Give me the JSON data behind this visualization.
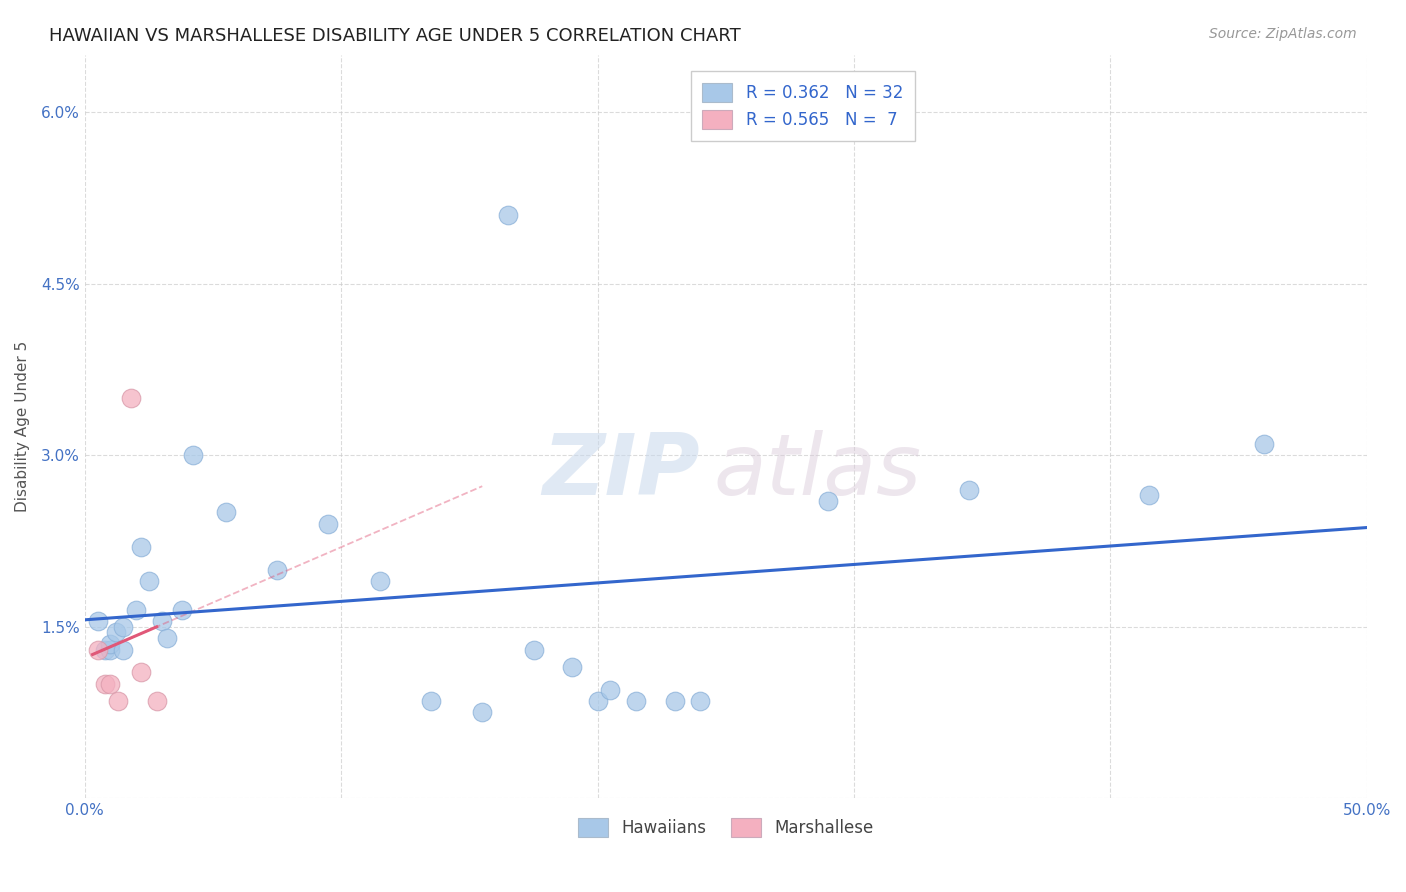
{
  "title": "HAWAIIAN VS MARSHALLESE DISABILITY AGE UNDER 5 CORRELATION CHART",
  "source": "Source: ZipAtlas.com",
  "ylabel": "Disability Age Under 5",
  "xlim": [
    0.0,
    0.5
  ],
  "ylim": [
    0.0,
    0.065
  ],
  "xticks": [
    0.0,
    0.1,
    0.2,
    0.3,
    0.4,
    0.5
  ],
  "xticklabels": [
    "0.0%",
    "",
    "",
    "",
    "",
    "50.0%"
  ],
  "yticks": [
    0.0,
    0.015,
    0.03,
    0.045,
    0.06
  ],
  "yticklabels": [
    "",
    "1.5%",
    "3.0%",
    "4.5%",
    "6.0%"
  ],
  "hawaiian_x": [
    0.005,
    0.008,
    0.01,
    0.01,
    0.012,
    0.015,
    0.015,
    0.02,
    0.022,
    0.025,
    0.03,
    0.032,
    0.038,
    0.042,
    0.055,
    0.075,
    0.095,
    0.115,
    0.135,
    0.155,
    0.175,
    0.2,
    0.205,
    0.215,
    0.23,
    0.24,
    0.19,
    0.165,
    0.29,
    0.345,
    0.415,
    0.46
  ],
  "hawaiian_y": [
    0.0155,
    0.013,
    0.013,
    0.0135,
    0.0145,
    0.013,
    0.015,
    0.0165,
    0.022,
    0.019,
    0.0155,
    0.014,
    0.0165,
    0.03,
    0.025,
    0.02,
    0.024,
    0.019,
    0.0085,
    0.0075,
    0.013,
    0.0085,
    0.0095,
    0.0085,
    0.0085,
    0.0085,
    0.0115,
    0.051,
    0.026,
    0.027,
    0.0265,
    0.031
  ],
  "marshallese_x": [
    0.005,
    0.008,
    0.01,
    0.013,
    0.018,
    0.022,
    0.028
  ],
  "marshallese_y": [
    0.013,
    0.01,
    0.01,
    0.0085,
    0.035,
    0.011,
    0.0085
  ],
  "hawaiian_R": 0.362,
  "hawaiian_N": 32,
  "marshallese_R": 0.565,
  "marshallese_N": 7,
  "hawaiian_color": "#a8c8e8",
  "marshallese_color": "#f4b0c0",
  "regression_hawaii_color": "#3366cc",
  "regression_marshall_color": "#e05878",
  "background_color": "#ffffff",
  "grid_color": "#cccccc",
  "watermark_zip": "ZIP",
  "watermark_atlas": "atlas",
  "title_fontsize": 13,
  "axis_label_fontsize": 11,
  "tick_fontsize": 11,
  "legend_fontsize": 12
}
